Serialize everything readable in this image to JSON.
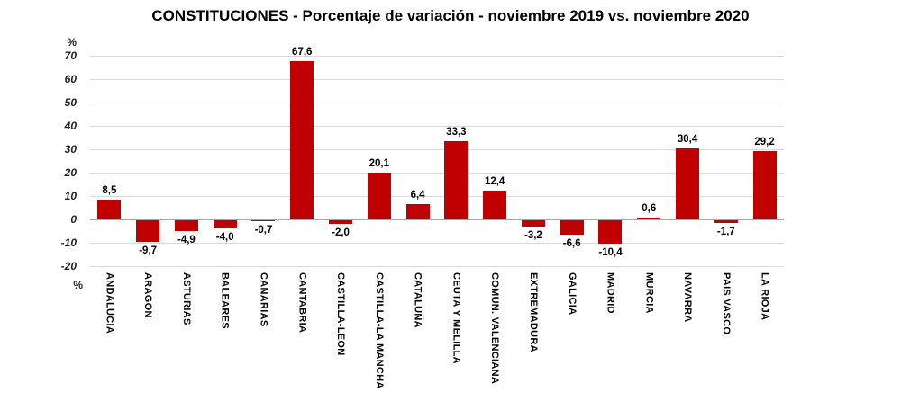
{
  "title": "CONSTITUCIONES - Porcentaje de variación - noviembre 2019 vs. noviembre 2020",
  "y_axis_unit_top": "%",
  "y_axis_unit_bottom": "%",
  "chart_data": {
    "type": "bar",
    "title": "CONSTITUCIONES - Porcentaje de variación - noviembre 2019 vs. noviembre 2020",
    "categories": [
      "ANDALUCIA",
      "ARAGON",
      "ASTURIAS",
      "BALEARES",
      "CANARIAS",
      "CANTABRIA",
      "CASTILLA-LEON",
      "CASTILLA-LA MANCHA",
      "CATALUÑA",
      "CEUTA Y MELILLA",
      "COMUN. VALENCIANA",
      "EXTREMADURA",
      "GALICIA",
      "MADRID",
      "MURCIA",
      "NAVARRA",
      "PAIS VASCO",
      "LA RIOJA"
    ],
    "values": [
      8.5,
      -9.7,
      -4.9,
      -4.0,
      -0.7,
      67.6,
      -2.0,
      20.1,
      6.4,
      33.3,
      12.4,
      -3.2,
      -6.6,
      -10.4,
      0.6,
      30.4,
      -1.7,
      29.2
    ],
    "value_labels": [
      "8,5",
      "-9,7",
      "-4,9",
      "-4,0",
      "-0,7",
      "67,6",
      "-2,0",
      "20,1",
      "6,4",
      "33,3",
      "12,4",
      "-3,2",
      "-6,6",
      "-10,4",
      "0,6",
      "30,4",
      "-1,7",
      "29,2"
    ],
    "xlabel": "",
    "ylabel": "%",
    "ylim": [
      -20,
      70
    ],
    "yticks": [
      70,
      60,
      50,
      40,
      30,
      20,
      10,
      0,
      -10,
      -20
    ],
    "bar_color": "#c00000",
    "grid": true,
    "legend": false
  }
}
